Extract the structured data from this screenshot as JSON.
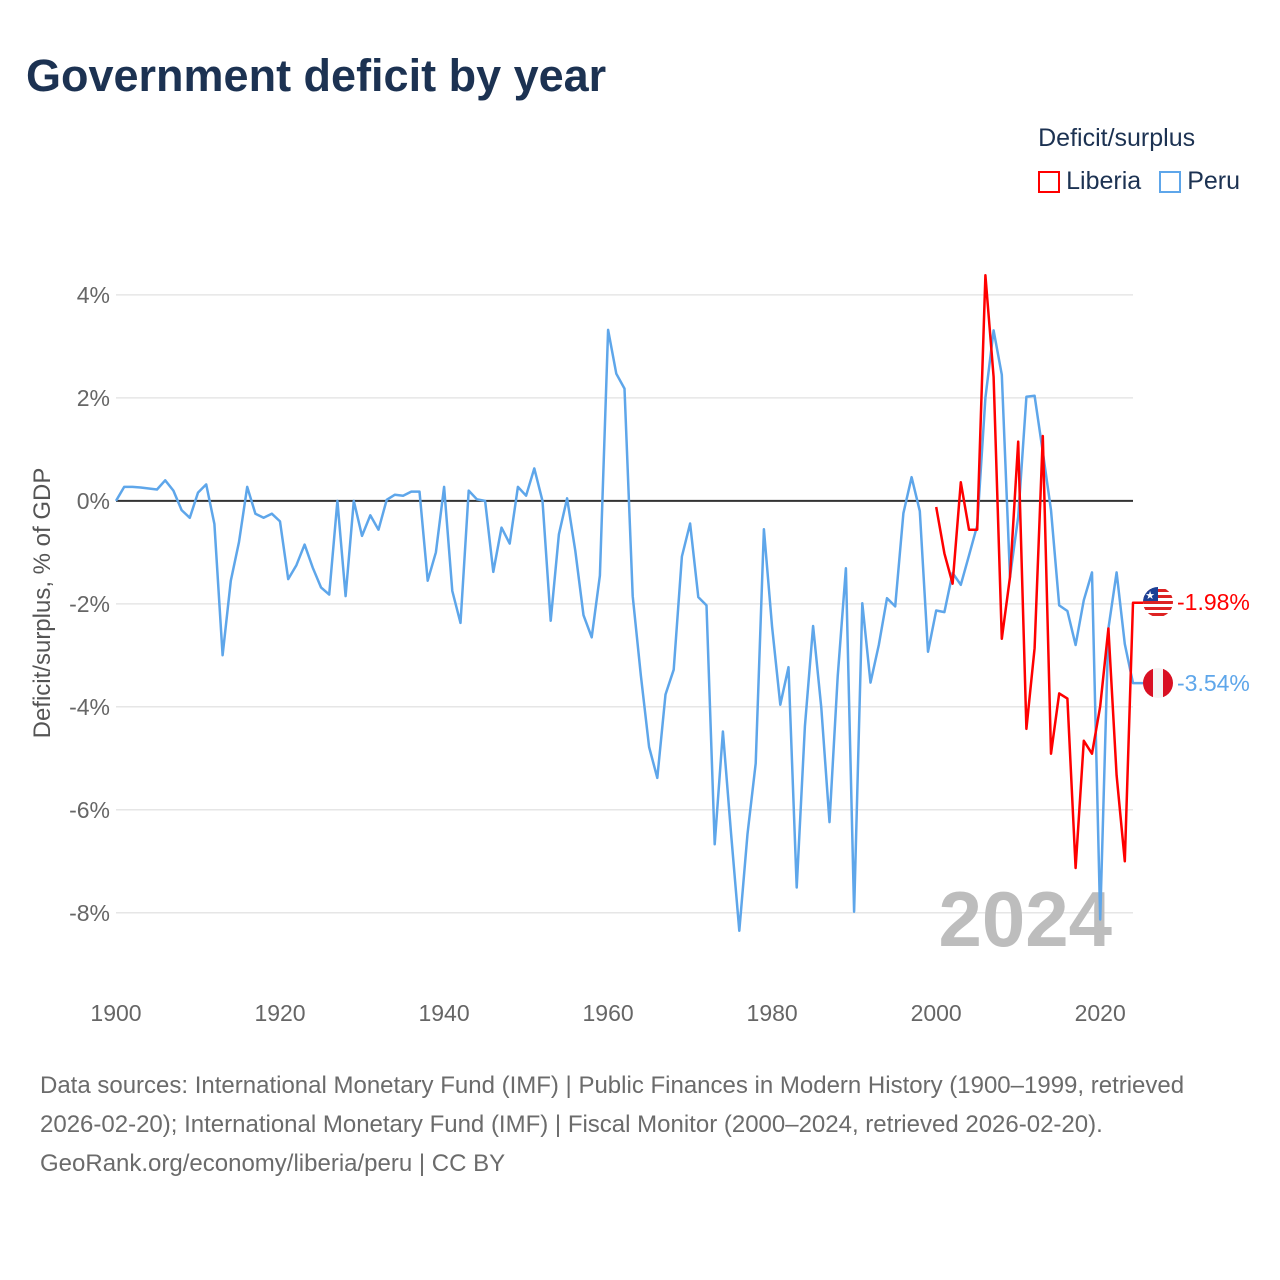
{
  "title": "Government deficit by year",
  "legend": {
    "title": "Deficit/surplus",
    "items": [
      {
        "name": "Liberia",
        "color": "#ff0000"
      },
      {
        "name": "Peru",
        "color": "#5ea6ea"
      }
    ]
  },
  "year_watermark": "2024",
  "footer": {
    "sources": "Data sources: International Monetary Fund (IMF) | Public Finances in Modern History (1900–1999, retrieved 2026-02-20); International Monetary Fund (IMF) | Fiscal Monitor (2000–2024, retrieved 2026-02-20).",
    "credit": "GeoRank.org/economy/liberia/peru | CC BY"
  },
  "chart_data": {
    "type": "line",
    "title": "Government deficit by year",
    "xlabel": "",
    "ylabel": "Deficit/surplus, % of GDP",
    "xlim": [
      1900,
      2024
    ],
    "ylim": [
      -9.5,
      4.6
    ],
    "xticks": [
      1900,
      1920,
      1940,
      1960,
      1980,
      2000,
      2020
    ],
    "yticks": [
      4,
      2,
      0,
      -2,
      -4,
      -6,
      -8
    ],
    "ytick_labels": [
      "4%",
      "2%",
      "0%",
      "-2%",
      "-4%",
      "-6%",
      "-8%"
    ],
    "grid": true,
    "legend_position": "top-right",
    "series": [
      {
        "name": "Peru",
        "color": "#5ea6ea",
        "start_year": 1900,
        "end_label": "-3.54%",
        "values": [
          0,
          0.27,
          0.27,
          0.26,
          0.24,
          0.22,
          0.4,
          0.2,
          -0.18,
          -0.33,
          0.16,
          0.32,
          -0.45,
          -3.0,
          -1.55,
          -0.8,
          0.27,
          -0.25,
          -0.33,
          -0.25,
          -0.4,
          -1.52,
          -1.25,
          -0.85,
          -1.3,
          -1.68,
          -1.82,
          0,
          -1.85,
          0,
          -0.68,
          -0.28,
          -0.56,
          0.02,
          0.12,
          0.1,
          0.18,
          0.18,
          -1.55,
          -1.0,
          0.27,
          -1.75,
          -2.37,
          0.2,
          0.03,
          0,
          -1.38,
          -0.52,
          -0.83,
          0.27,
          0.1,
          0.63,
          0,
          -2.33,
          -0.65,
          0.05,
          -0.97,
          -2.22,
          -2.65,
          -1.45,
          3.32,
          2.47,
          2.18,
          -1.85,
          -3.4,
          -4.78,
          -5.38,
          -3.76,
          -3.28,
          -1.08,
          -0.44,
          -1.87,
          -2.03,
          -6.67,
          -4.48,
          -6.47,
          -8.35,
          -6.47,
          -5.1,
          -0.55,
          -2.45,
          -3.96,
          -3.23,
          -7.51,
          -4.38,
          -2.43,
          -4.02,
          -6.24,
          -3.41,
          -1.31,
          -7.98,
          -1.99,
          -3.53,
          -2.8,
          -1.89,
          -2.05,
          -0.24,
          0.46,
          -0.2,
          -2.93,
          -2.13,
          -2.16,
          -1.4,
          -1.63,
          -1.06,
          -0.48,
          2.0,
          3.31,
          2.45,
          -1.48,
          -0.31,
          2.02,
          2.04,
          0.95,
          -0.18,
          -2.03,
          -2.14,
          -2.8,
          -1.93,
          -1.39,
          -8.13,
          -2.48,
          -1.39,
          -2.78,
          -3.54
        ]
      },
      {
        "name": "Liberia",
        "color": "#ff0000",
        "start_year": 2000,
        "end_label": "-1.98%",
        "values": [
          -0.12,
          -1.02,
          -1.61,
          0.36,
          -0.56,
          -0.56,
          4.38,
          2.41,
          -2.68,
          -1.48,
          1.15,
          -4.43,
          -2.86,
          1.26,
          -4.91,
          -3.74,
          -3.84,
          -7.13,
          -4.66,
          -4.91,
          -3.99,
          -2.48,
          -5.33,
          -7.0,
          -1.98
        ]
      }
    ]
  }
}
